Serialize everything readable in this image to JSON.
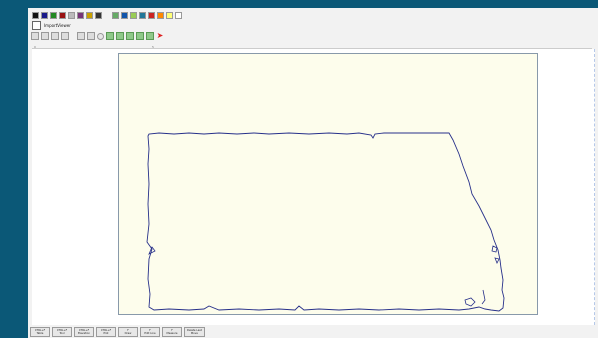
{
  "window": {
    "title": "ImportViewer"
  },
  "palette": [
    "#111111",
    "#1b1b8a",
    "#228822",
    "#991111",
    "#bbbbbb",
    "#773377",
    "#c8a000",
    "#333333",
    "#66aa66",
    "#1155aa",
    "#99cc55",
    "#227799",
    "#cc2222",
    "#ff8800",
    "#ffff77",
    "#ffffff"
  ],
  "toolbar": {
    "buttons": [
      "new-icon",
      "open-icon",
      "save-icon",
      "print-icon",
      "separator",
      "pen-icon",
      "cursor-icon",
      "circle-icon",
      "green-tool-1",
      "green-tool-2",
      "green-tool-3",
      "green-tool-4",
      "green-tool-5",
      "arrow-icon"
    ],
    "accent_arrow": "#d22222"
  },
  "ruler": {
    "marks": [
      "0",
      "5"
    ]
  },
  "function_keys": [
    {
      "key": "CTRL+F",
      "label": "Table"
    },
    {
      "key": "CTRL+F",
      "label": "Tool"
    },
    {
      "key": "CTRL+F",
      "label": "Elevation"
    },
    {
      "key": "CTRL+F",
      "label": "Plot"
    },
    {
      "key": "F",
      "label": "Draw"
    },
    {
      "key": "F",
      "label": "Edit Line"
    },
    {
      "key": "F",
      "label": "Measure"
    },
    {
      "key": "Delete Last",
      "label": "Move"
    }
  ],
  "colors": {
    "outline": "#27308a",
    "paper": "#fdfdec",
    "background": "#0b5877"
  }
}
